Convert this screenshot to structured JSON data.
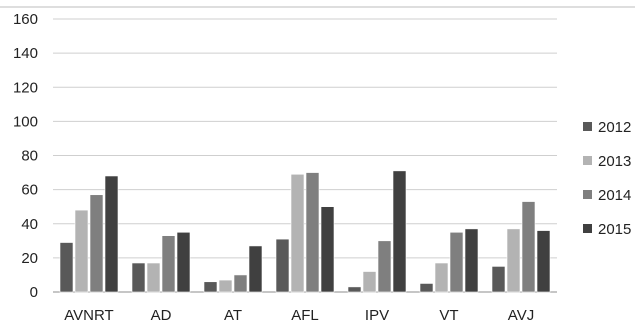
{
  "chart_data": {
    "type": "bar",
    "categories": [
      "AVNRT",
      "AD",
      "AT",
      "AFL",
      "IPV",
      "VT",
      "AVJ"
    ],
    "series": [
      {
        "name": "2012",
        "values": [
          29,
          17,
          6,
          31,
          3,
          5,
          15
        ],
        "color": "#595959"
      },
      {
        "name": "2013",
        "values": [
          48,
          17,
          7,
          69,
          12,
          17,
          37
        ],
        "color": "#b3b3b3"
      },
      {
        "name": "2014",
        "values": [
          57,
          33,
          10,
          70,
          30,
          35,
          53
        ],
        "color": "#7f7f7f"
      },
      {
        "name": "2015",
        "values": [
          68,
          35,
          27,
          50,
          71,
          37,
          36
        ],
        "color": "#404040"
      }
    ],
    "ylim": [
      0,
      160
    ],
    "yticks": [
      0,
      20,
      40,
      60,
      80,
      100,
      120,
      140,
      160
    ],
    "grid": true,
    "legend_position": "right",
    "title": "",
    "xlabel": "",
    "ylabel": ""
  }
}
